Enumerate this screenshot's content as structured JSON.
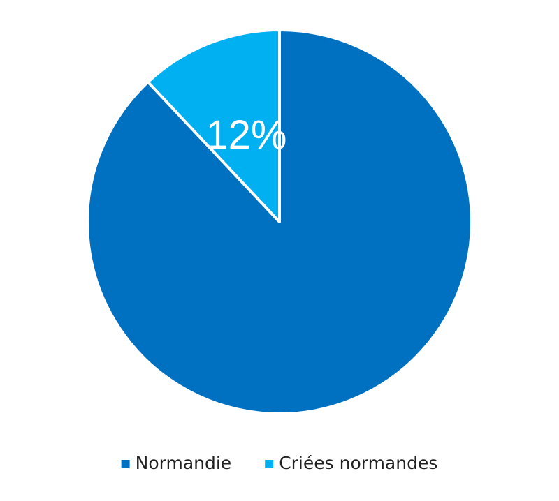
{
  "chart_data": {
    "type": "pie",
    "categories": [
      "Normandie",
      "Criées normandes"
    ],
    "values": [
      88,
      12
    ],
    "value_labels": [
      null,
      "12%"
    ],
    "colors": [
      "#0070c0",
      "#00b0f0"
    ],
    "start_angle": 0,
    "direction": "clockwise",
    "legend": "bottom"
  }
}
